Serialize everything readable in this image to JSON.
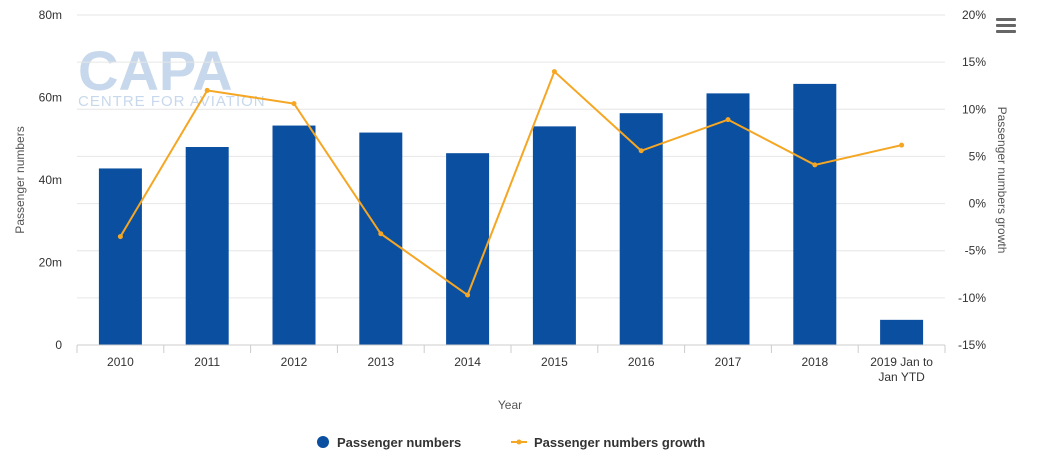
{
  "chart_data": {
    "type": "bar",
    "categories": [
      "2010",
      "2011",
      "2012",
      "2013",
      "2014",
      "2015",
      "2016",
      "2017",
      "2018",
      "2019 Jan to Jan YTD"
    ],
    "series": [
      {
        "name": "Passenger numbers",
        "type": "bar",
        "axis": "left",
        "color": "#0b4fa0",
        "values": [
          42.8,
          48.0,
          53.2,
          51.5,
          46.5,
          53.0,
          56.2,
          61.0,
          63.3,
          6.1
        ]
      },
      {
        "name": "Passenger numbers growth",
        "type": "line",
        "axis": "right",
        "color": "#f5a623",
        "values": [
          -3.5,
          12.0,
          10.6,
          -3.2,
          -9.7,
          14.0,
          5.6,
          8.9,
          4.1,
          6.2
        ]
      }
    ],
    "xlabel": "Year",
    "ylabel": "Passenger numbers",
    "ylabel_right": "Passenger numbers growth",
    "ylim": [
      0,
      80
    ],
    "ylim_right": [
      -15,
      20
    ],
    "yticks": [
      "0",
      "20m",
      "40m",
      "60m",
      "80m"
    ],
    "yticks_right": [
      "-15%",
      "-10%",
      "-5%",
      "0%",
      "5%",
      "10%",
      "15%",
      "20%"
    ],
    "grid": true,
    "legend_position": "bottom-center"
  },
  "watermark": {
    "big": "CAPA",
    "small": "CENTRE FOR AVIATION"
  },
  "menu": {
    "icon": "hamburger-menu-icon"
  }
}
